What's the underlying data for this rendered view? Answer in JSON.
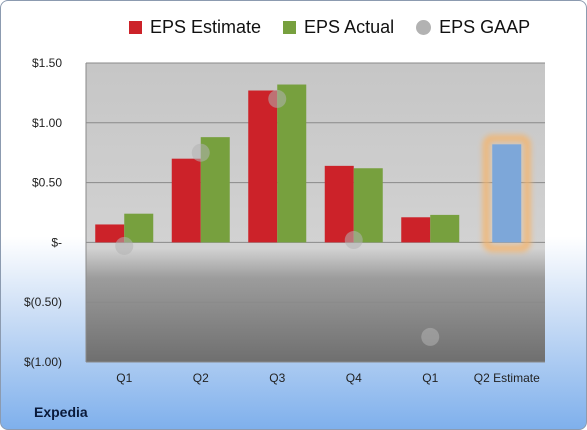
{
  "company": "Expedia",
  "chart_data": {
    "type": "bar",
    "categories": [
      "Q1",
      "Q2",
      "Q3",
      "Q4",
      "Q1",
      "Q2 Estimate"
    ],
    "series": [
      {
        "name": "EPS Estimate",
        "type": "bar",
        "color": "#cc2229",
        "values": [
          0.15,
          0.7,
          1.27,
          0.64,
          0.21,
          null
        ]
      },
      {
        "name": "EPS Actual",
        "type": "bar",
        "color": "#77a03e",
        "values": [
          0.24,
          0.88,
          1.32,
          0.62,
          0.23,
          0.82
        ]
      },
      {
        "name": "EPS GAAP",
        "type": "scatter",
        "color": "#b2b2b2",
        "values": [
          -0.03,
          0.75,
          1.2,
          0.02,
          -0.79,
          null
        ]
      }
    ],
    "highlight": {
      "category_index": 5,
      "color": "#7da7d9",
      "glow": "#f5b46a"
    },
    "ylim": [
      -1.0,
      1.5
    ],
    "yticks": [
      {
        "value": 1.5,
        "label": "$1.50"
      },
      {
        "value": 1.0,
        "label": "$1.00"
      },
      {
        "value": 0.5,
        "label": "$0.50"
      },
      {
        "value": 0.0,
        "label": "$-"
      },
      {
        "value": -0.5,
        "label": "$(0.50)"
      },
      {
        "value": -1.0,
        "label": "$(1.00)"
      }
    ],
    "grid": true,
    "legend_position": "top"
  }
}
